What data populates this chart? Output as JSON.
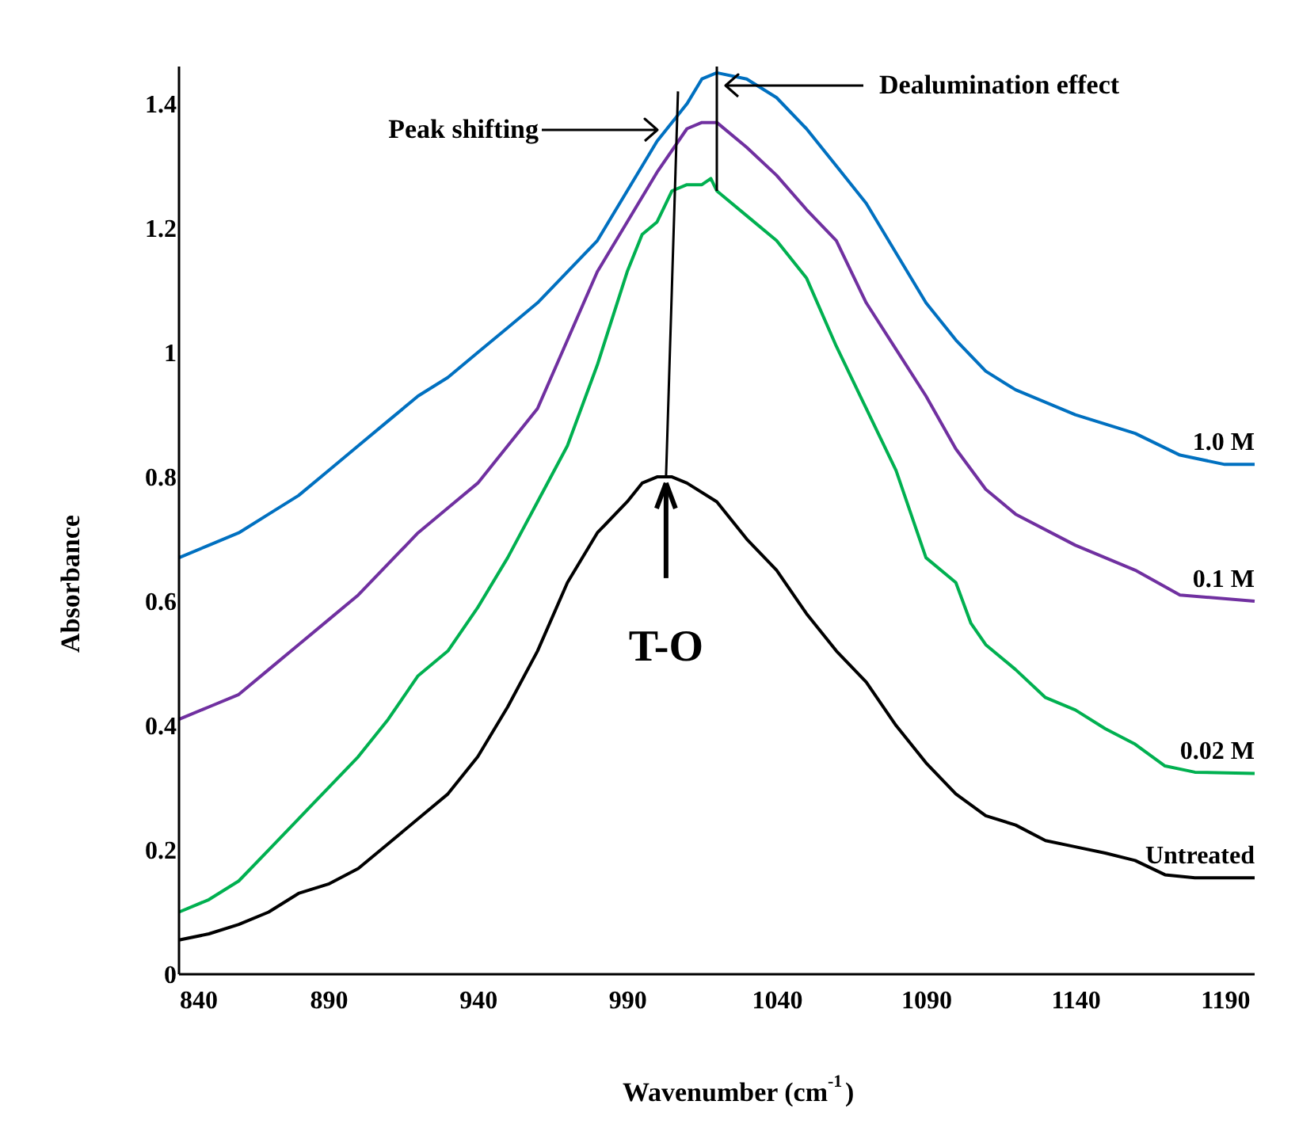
{
  "chart_data": {
    "type": "line",
    "xlabel": "Wavenumber (cm$^{-1}$)",
    "ylabel": "Absorbance",
    "xlim": [
      840,
      1200
    ],
    "xticks": [
      840,
      890,
      940,
      990,
      1040,
      1090,
      1140,
      1190
    ],
    "ylim": [
      0,
      1.46
    ],
    "yticks": [
      0,
      0.2,
      0.4,
      0.6,
      0.8,
      1,
      1.2,
      1.4
    ],
    "grid": false,
    "marker": "none",
    "line_style": "solid",
    "series": [
      {
        "name": "1.0 M",
        "color": "#0070c0",
        "x": [
          840,
          850,
          860,
          870,
          880,
          890,
          900,
          910,
          920,
          930,
          940,
          950,
          960,
          970,
          980,
          990,
          1000,
          1010,
          1015,
          1020,
          1030,
          1040,
          1050,
          1060,
          1070,
          1080,
          1090,
          1100,
          1110,
          1120,
          1140,
          1160,
          1175,
          1190,
          1200
        ],
        "values": [
          0.67,
          0.69,
          0.71,
          0.74,
          0.77,
          0.81,
          0.85,
          0.89,
          0.93,
          0.96,
          1.0,
          1.04,
          1.08,
          1.13,
          1.18,
          1.26,
          1.34,
          1.4,
          1.44,
          1.45,
          1.44,
          1.41,
          1.36,
          1.3,
          1.24,
          1.16,
          1.08,
          1.02,
          0.97,
          0.94,
          0.9,
          0.87,
          0.835,
          0.82,
          0.82
        ]
      },
      {
        "name": "0.1 M",
        "color": "#7030a0",
        "x": [
          840,
          850,
          860,
          870,
          880,
          890,
          900,
          910,
          920,
          930,
          940,
          960,
          980,
          990,
          1000,
          1010,
          1015,
          1020,
          1030,
          1040,
          1050,
          1060,
          1070,
          1080,
          1090,
          1100,
          1110,
          1120,
          1140,
          1160,
          1175,
          1200
        ],
        "values": [
          0.41,
          0.43,
          0.45,
          0.49,
          0.53,
          0.57,
          0.61,
          0.66,
          0.71,
          0.75,
          0.79,
          0.91,
          1.13,
          1.21,
          1.29,
          1.36,
          1.37,
          1.37,
          1.33,
          1.285,
          1.23,
          1.18,
          1.08,
          1.005,
          0.93,
          0.845,
          0.78,
          0.74,
          0.69,
          0.65,
          0.61,
          0.6
        ]
      },
      {
        "name": "0.02 M",
        "color": "#00b050",
        "x": [
          840,
          850,
          860,
          870,
          880,
          890,
          900,
          910,
          920,
          930,
          940,
          950,
          960,
          970,
          980,
          990,
          995,
          1000,
          1005,
          1010,
          1015,
          1018,
          1020,
          1030,
          1040,
          1050,
          1060,
          1070,
          1080,
          1090,
          1100,
          1105,
          1110,
          1120,
          1130,
          1140,
          1150,
          1160,
          1170,
          1180,
          1200
        ],
        "values": [
          0.1,
          0.12,
          0.15,
          0.2,
          0.25,
          0.3,
          0.35,
          0.41,
          0.48,
          0.52,
          0.59,
          0.67,
          0.76,
          0.85,
          0.98,
          1.13,
          1.19,
          1.21,
          1.26,
          1.27,
          1.27,
          1.28,
          1.26,
          1.22,
          1.18,
          1.12,
          1.01,
          0.91,
          0.81,
          0.67,
          0.63,
          0.565,
          0.53,
          0.49,
          0.445,
          0.425,
          0.395,
          0.37,
          0.335,
          0.325,
          0.323
        ]
      },
      {
        "name": "Untreated",
        "color": "#000000",
        "x": [
          840,
          850,
          860,
          870,
          880,
          890,
          900,
          910,
          920,
          930,
          940,
          950,
          960,
          970,
          980,
          990,
          995,
          1000,
          1005,
          1010,
          1020,
          1030,
          1040,
          1050,
          1060,
          1070,
          1080,
          1090,
          1100,
          1110,
          1120,
          1130,
          1140,
          1150,
          1160,
          1170,
          1180,
          1200
        ],
        "values": [
          0.055,
          0.065,
          0.08,
          0.1,
          0.13,
          0.145,
          0.17,
          0.21,
          0.25,
          0.29,
          0.35,
          0.43,
          0.52,
          0.63,
          0.71,
          0.76,
          0.79,
          0.8,
          0.8,
          0.79,
          0.76,
          0.7,
          0.65,
          0.58,
          0.52,
          0.47,
          0.4,
          0.34,
          0.29,
          0.255,
          0.24,
          0.215,
          0.205,
          0.195,
          0.183,
          0.16,
          0.155,
          0.155
        ]
      },
      {
        "type": "line",
        "color": "#000000",
        "x": [
          1003,
          1007
        ],
        "values": [
          0.8,
          1.42
        ]
      },
      {
        "type": "line",
        "color": "#000000",
        "x": [
          1020,
          1020
        ],
        "values": [
          1.46,
          1.26
        ]
      }
    ],
    "annotations": [
      "Peak shifting",
      "Dealumination effect",
      {
        "text": "T-O",
        "x": 1003,
        "y": 0.79
      }
    ]
  }
}
